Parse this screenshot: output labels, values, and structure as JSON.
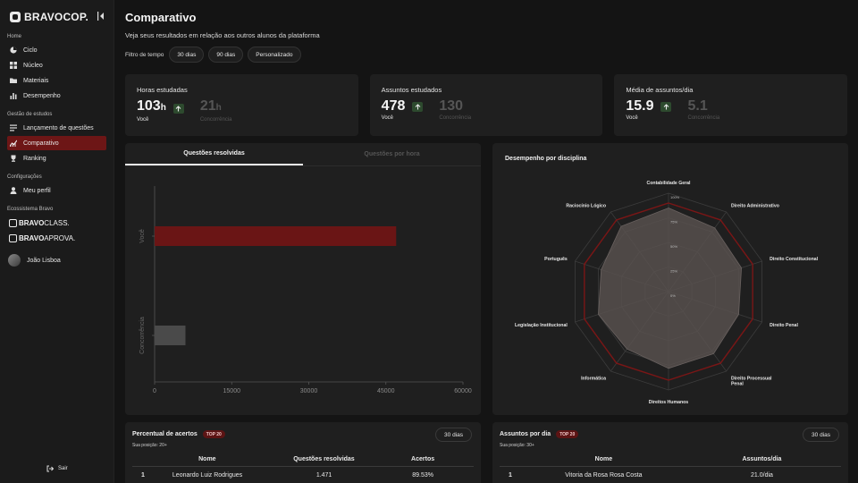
{
  "sidebar": {
    "brand": "BRAVOCOP.",
    "sections": {
      "home": "Home",
      "gestao": "Gestão de estudos",
      "config": "Configurações",
      "eco": "Ecossistema Bravo"
    },
    "home_items": [
      {
        "label": "Ciclo",
        "icon": "cycle-icon"
      },
      {
        "label": "Núcleo",
        "icon": "grid-icon"
      },
      {
        "label": "Materiais",
        "icon": "folder-icon"
      },
      {
        "label": "Desempenho",
        "icon": "bar-chart-icon"
      }
    ],
    "gestao_items": [
      {
        "label": "Lançamento de questões",
        "icon": "list-icon"
      },
      {
        "label": "Comparativo",
        "icon": "compare-chart-icon",
        "active": true
      },
      {
        "label": "Ranking",
        "icon": "trophy-icon"
      }
    ],
    "config_items": [
      {
        "label": "Meu perfil",
        "icon": "user-icon"
      }
    ],
    "eco_items": [
      {
        "bold": "BRAVO",
        "rest": "CLASS."
      },
      {
        "bold": "BRAVO",
        "rest": "APROVA."
      }
    ],
    "user_name": "João Lisboa",
    "logout": "Sair"
  },
  "header": {
    "title": "Comparativo",
    "subtitle": "Veja seus resultados em relação aos outros alunos da plataforma",
    "filter_label": "Filtro de tempo",
    "filters": [
      "30 dias",
      "90 dias",
      "Personalizado"
    ]
  },
  "stats": [
    {
      "title": "Horas estudadas",
      "you": "103",
      "you_unit": "h",
      "you_label": "Você",
      "comp": "21",
      "comp_unit": "h",
      "comp_label": "Concorrência"
    },
    {
      "title": "Assuntos estudados",
      "you": "478",
      "you_unit": "",
      "you_label": "Você",
      "comp": "130",
      "comp_unit": "",
      "comp_label": "Concorrência"
    },
    {
      "title": "Média de assuntos/dia",
      "you": "15.9",
      "you_unit": "",
      "you_label": "Você",
      "comp": "5.1",
      "comp_unit": "",
      "comp_label": "Concorrência"
    }
  ],
  "tabs": [
    "Questões resolvidas",
    "Questões por hora"
  ],
  "radar": {
    "title": "Desempenho por disciplina",
    "axes": [
      "Contabilidade Geral",
      "Direito Administrativo",
      "Direito Constitucional",
      "Direito Penal",
      "Direito Processual Penal",
      "Direitos Humanos",
      "Informática",
      "Legislação Institucional",
      "Português",
      "Raciocínio Lógico"
    ],
    "ring_labels": [
      "100%",
      "75%",
      "50%",
      "25%",
      "0%"
    ]
  },
  "chart_data": [
    {
      "type": "bar",
      "orientation": "horizontal",
      "categories": [
        "Você",
        "Concorrência"
      ],
      "values": [
        47000,
        6000
      ],
      "xlim": [
        0,
        60000
      ],
      "xticks": [
        "0",
        "15000",
        "30000",
        "45000",
        "60000"
      ],
      "colors": [
        "#6a1515",
        "#4a4a4a"
      ]
    },
    {
      "type": "radar",
      "categories": [
        "Contabilidade Geral",
        "Direito Administrativo",
        "Direito Constitucional",
        "Direito Penal",
        "Direito Processual Penal",
        "Direitos Humanos",
        "Informática",
        "Legislação Institucional",
        "Português",
        "Raciocínio Lógico"
      ],
      "series": [
        {
          "values": [
            90,
            90,
            90,
            90,
            90,
            90,
            90,
            90,
            90,
            90
          ],
          "color": "#7a1616"
        },
        {
          "values": [
            85,
            80,
            78,
            75,
            78,
            78,
            72,
            75,
            72,
            82
          ],
          "color": "#5a5250"
        }
      ],
      "rlim": [
        0,
        100
      ]
    }
  ],
  "tables": [
    {
      "title": "Percentual de acertos",
      "badge": "TOP 20",
      "position": "Sua posição: 20+",
      "button": "30 dias",
      "headers": [
        "Nome",
        "Questões resolvidas",
        "Acertos"
      ],
      "rows": [
        [
          "1",
          "Leonardo Luiz Rodrigues",
          "1.471",
          "89.53%"
        ]
      ]
    },
    {
      "title": "Assuntos por dia",
      "badge": "TOP 20",
      "position": "Sua posição: 30+",
      "button": "30 dias",
      "headers": [
        "Nome",
        "Assuntos/dia"
      ],
      "rows": [
        [
          "1",
          "Vitoria da Rosa Rosa Costa",
          "21.0/dia"
        ]
      ]
    }
  ]
}
